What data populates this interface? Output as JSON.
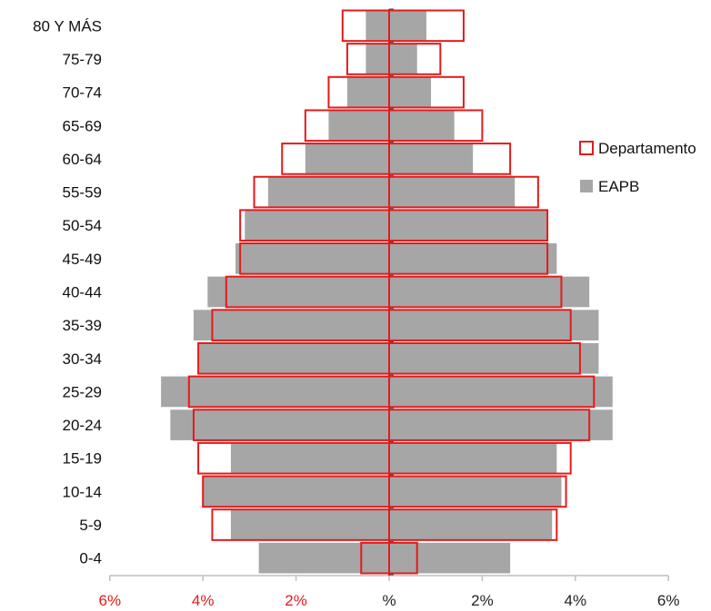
{
  "chart_data": {
    "type": "bar",
    "orientation": "horizontal",
    "layout": "population-pyramid",
    "categories": [
      "0-4",
      "5-9",
      "10-14",
      "15-19",
      "20-24",
      "25-29",
      "30-34",
      "35-39",
      "40-44",
      "45-49",
      "50-54",
      "55-59",
      "60-64",
      "65-69",
      "70-74",
      "75-79",
      "80 Y MÁS"
    ],
    "series": [
      {
        "name": "Departamento",
        "style": "outline",
        "color": "#e31b1b",
        "left_values": [
          0.6,
          3.8,
          4.0,
          4.1,
          4.2,
          4.3,
          4.1,
          3.8,
          3.5,
          3.2,
          3.2,
          2.9,
          2.3,
          1.8,
          1.3,
          0.9,
          1.0
        ],
        "right_values": [
          0.6,
          3.6,
          3.8,
          3.9,
          4.3,
          4.4,
          4.1,
          3.9,
          3.7,
          3.4,
          3.4,
          3.2,
          2.6,
          2.0,
          1.6,
          1.1,
          1.6
        ]
      },
      {
        "name": "EAPB",
        "style": "filled",
        "color": "#a6a6a6",
        "left_values": [
          2.8,
          3.4,
          4.0,
          3.4,
          4.7,
          4.9,
          4.1,
          4.2,
          3.9,
          3.3,
          3.1,
          2.6,
          1.8,
          1.3,
          0.9,
          0.5,
          0.5
        ],
        "right_values": [
          2.6,
          3.5,
          3.7,
          3.6,
          4.8,
          4.8,
          4.5,
          4.5,
          4.3,
          3.6,
          3.4,
          2.7,
          1.8,
          1.4,
          0.9,
          0.6,
          0.8
        ]
      }
    ],
    "x_ticks": [
      {
        "label": "6%",
        "value": -6,
        "color": "#e31b1b"
      },
      {
        "label": "4%",
        "value": -4,
        "color": "#e31b1b"
      },
      {
        "label": "2%",
        "value": -2,
        "color": "#e31b1b"
      },
      {
        "label": "%",
        "value": 0,
        "color": "#222222"
      },
      {
        "label": "2%",
        "value": 2,
        "color": "#222222"
      },
      {
        "label": "4%",
        "value": 4,
        "color": "#222222"
      },
      {
        "label": "6%",
        "value": 6,
        "color": "#222222"
      }
    ],
    "xlim": [
      -6,
      6
    ],
    "grid": false,
    "legend": "right"
  }
}
